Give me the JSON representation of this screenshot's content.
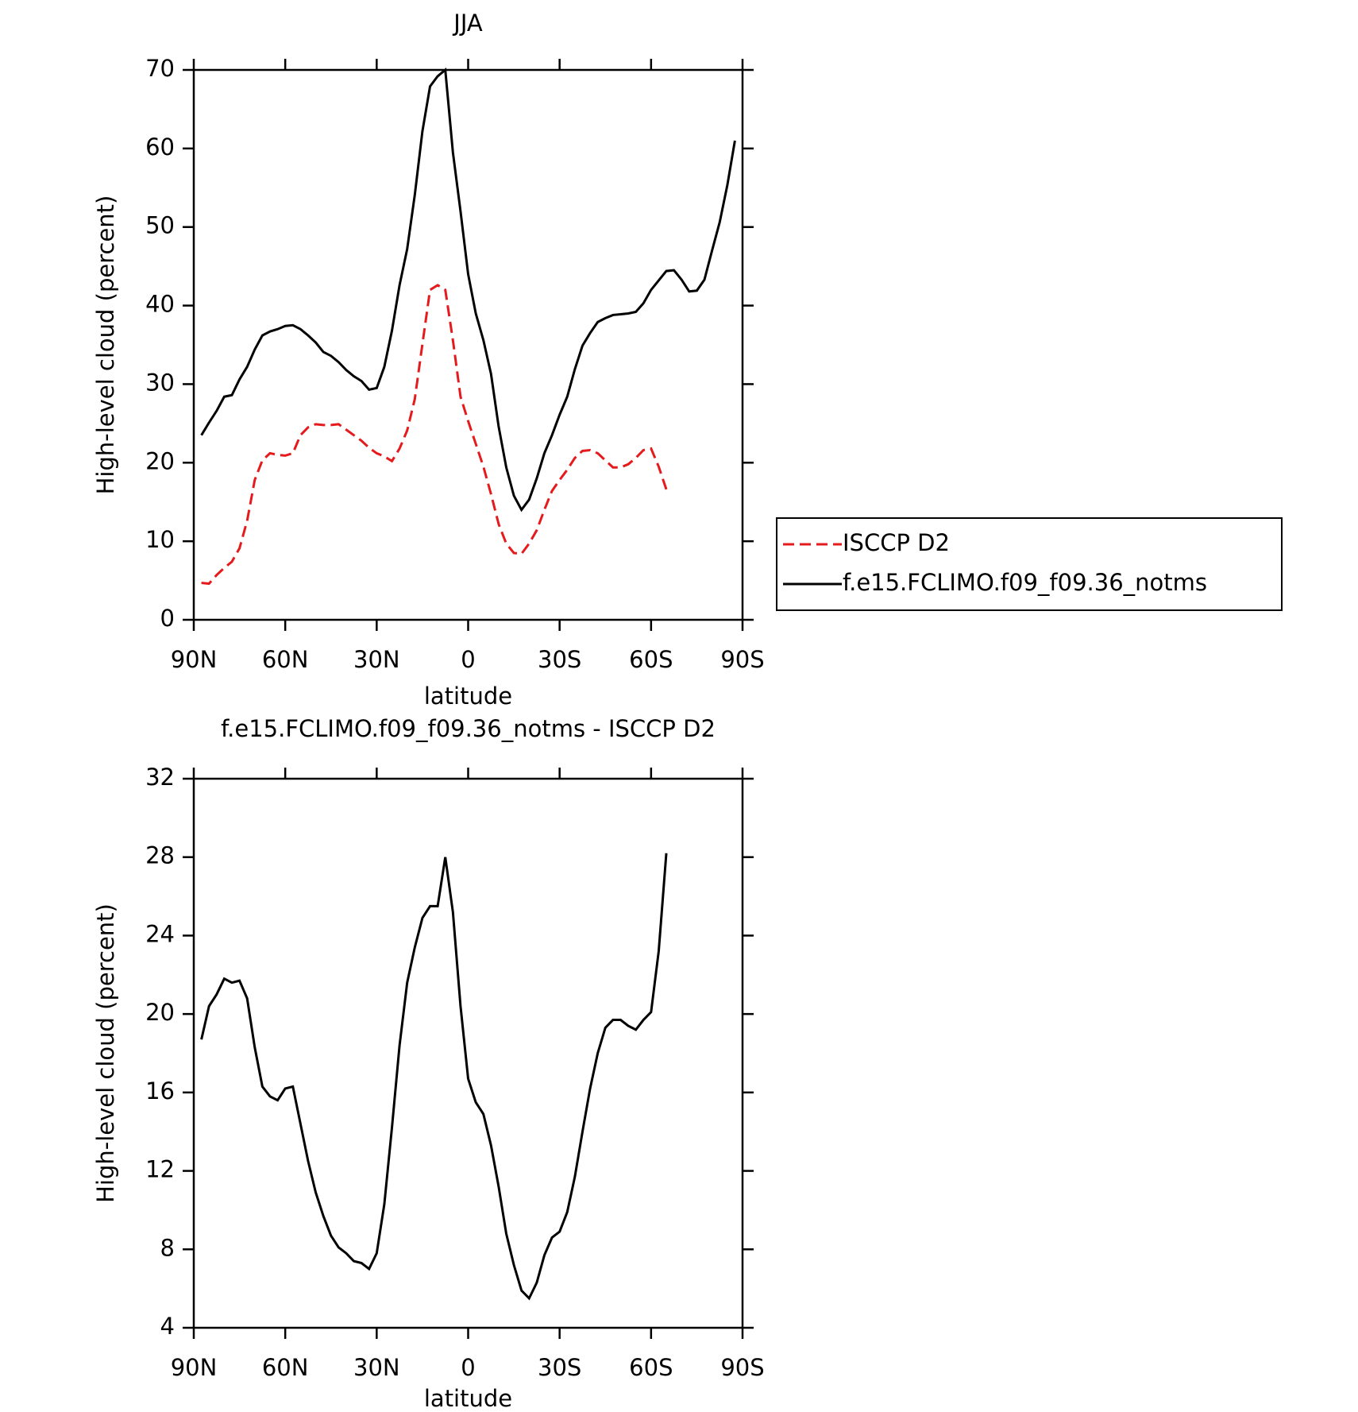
{
  "chart_data": [
    {
      "type": "line",
      "title": "JJA",
      "xlabel": "latitude",
      "ylabel": "High-level cloud (percent)",
      "x": [
        87.5,
        85,
        82.5,
        80,
        77.5,
        75,
        72.5,
        70,
        67.5,
        65,
        62.5,
        60,
        57.5,
        55,
        52.5,
        50,
        47.5,
        45,
        42.5,
        40,
        37.5,
        35,
        32.5,
        30,
        27.5,
        25,
        22.5,
        20,
        17.5,
        15,
        12.5,
        10,
        7.5,
        5,
        2.5,
        0,
        -2.5,
        -5,
        -7.5,
        -10,
        -12.5,
        -15,
        -17.5,
        -20,
        -22.5,
        -25,
        -27.5,
        -30,
        -32.5,
        -35,
        -37.5,
        -40,
        -42.5,
        -45,
        -47.5,
        -50,
        -52.5,
        -55,
        -57.5,
        -60,
        -62.5,
        -65,
        -67.5,
        -70,
        -72.5,
        -75,
        -77.5,
        -80,
        -82.5,
        -85,
        -87.5
      ],
      "series": [
        {
          "name": "ISCCP D2",
          "color": "#e41a1c",
          "linestyle": "dashed",
          "values": [
            4.7,
            4.6,
            5.7,
            6.6,
            7.4,
            9.1,
            12.6,
            17.8,
            20.3,
            21.2,
            21.0,
            20.9,
            21.2,
            23.5,
            24.5,
            24.9,
            24.8,
            24.8,
            24.9,
            24.2,
            23.5,
            22.8,
            21.9,
            21.2,
            20.8,
            20.2,
            21.8,
            24.1,
            28.1,
            35.1,
            42.0,
            42.6,
            42.0,
            35.6,
            28.4,
            25.3,
            22.4,
            19.5,
            16.0,
            12.2,
            9.7,
            8.5,
            8.4,
            9.7,
            11.4,
            14.0,
            16.4,
            17.8,
            19.1,
            20.6,
            21.5,
            21.6,
            21.2,
            20.3,
            19.4,
            19.4,
            19.8,
            20.6,
            21.6,
            21.8,
            19.5,
            16.6,
            null,
            null,
            null,
            null,
            null,
            null,
            null,
            null,
            null
          ]
        },
        {
          "name": "f.e15.FCLIMO.f09_f09.36_notms",
          "color": "#000000",
          "linestyle": "solid",
          "values": [
            23.5,
            25.1,
            26.6,
            28.4,
            28.6,
            30.6,
            32.2,
            34.4,
            36.2,
            36.7,
            37.0,
            37.4,
            37.5,
            37.0,
            36.2,
            35.3,
            34.1,
            33.6,
            32.8,
            31.8,
            31.0,
            30.4,
            29.3,
            29.5,
            32.2,
            36.8,
            42.6,
            47.2,
            54.1,
            62.2,
            67.9,
            69.2,
            70.0,
            59.5,
            52.0,
            44.0,
            39.0,
            35.6,
            31.3,
            24.6,
            19.4,
            15.8,
            14.0,
            15.3,
            18.0,
            21.2,
            23.5,
            26.1,
            28.4,
            31.9,
            34.9,
            36.5,
            37.9,
            38.4,
            38.8,
            38.9,
            39.0,
            39.2,
            40.3,
            42.0,
            43.2,
            44.4,
            44.5,
            43.3,
            41.8,
            41.9,
            43.3,
            47.0,
            50.6,
            55.3,
            61.0
          ]
        }
      ],
      "xlim": [
        90,
        -90
      ],
      "xticks": [
        {
          "value": 90,
          "label": "90N"
        },
        {
          "value": 60,
          "label": "60N"
        },
        {
          "value": 30,
          "label": "30N"
        },
        0,
        {
          "value": -30,
          "label": "30S"
        },
        {
          "value": -60,
          "label": "60S"
        },
        {
          "value": -90,
          "label": "90S"
        }
      ],
      "ylim": [
        0,
        70
      ],
      "yticks": [
        0,
        10,
        20,
        30,
        40,
        50,
        60,
        70
      ],
      "legend": "right"
    },
    {
      "type": "line",
      "title": "f.e15.FCLIMO.f09_f09.36_notms - ISCCP D2",
      "xlabel": "latitude",
      "ylabel": "High-level cloud (percent)",
      "x": [
        87.5,
        85,
        82.5,
        80,
        77.5,
        75,
        72.5,
        70,
        67.5,
        65,
        62.5,
        60,
        57.5,
        55,
        52.5,
        50,
        47.5,
        45,
        42.5,
        40,
        37.5,
        35,
        32.5,
        30,
        27.5,
        25,
        22.5,
        20,
        17.5,
        15,
        12.5,
        10,
        7.5,
        5,
        2.5,
        0,
        -2.5,
        -5,
        -7.5,
        -10,
        -12.5,
        -15,
        -17.5,
        -20,
        -22.5,
        -25,
        -27.5,
        -30,
        -32.5,
        -35,
        -37.5,
        -40,
        -42.5,
        -45,
        -47.5,
        -50,
        -52.5,
        -55,
        -57.5,
        -60,
        -62.5,
        -65,
        -67.5,
        -70,
        -72.5,
        -75,
        -77.5,
        -80,
        -82.5,
        -85,
        -87.5
      ],
      "series": [
        {
          "color": "#000000",
          "linestyle": "solid",
          "values": [
            18.7,
            20.4,
            21.0,
            21.8,
            21.6,
            21.7,
            20.8,
            18.3,
            16.3,
            15.8,
            15.6,
            16.2,
            16.3,
            14.4,
            12.5,
            10.9,
            9.7,
            8.7,
            8.1,
            7.8,
            7.4,
            7.3,
            7.0,
            7.8,
            10.3,
            14.2,
            18.4,
            21.6,
            23.4,
            24.9,
            25.5,
            25.5,
            28.0,
            25.2,
            20.4,
            16.7,
            15.5,
            14.9,
            13.3,
            11.2,
            8.8,
            7.2,
            5.9,
            5.5,
            6.3,
            7.7,
            8.6,
            8.9,
            9.9,
            11.7,
            14.0,
            16.2,
            18.0,
            19.3,
            19.7,
            19.7,
            19.4,
            19.2,
            19.7,
            20.1,
            23.2,
            28.2,
            null,
            null,
            null,
            null,
            null,
            null,
            null,
            null,
            null
          ]
        }
      ],
      "xlim": [
        90,
        -90
      ],
      "xticks": [
        {
          "value": 90,
          "label": "90N"
        },
        {
          "value": 60,
          "label": "60N"
        },
        {
          "value": 30,
          "label": "30N"
        },
        0,
        {
          "value": -30,
          "label": "30S"
        },
        {
          "value": -60,
          "label": "60S"
        },
        {
          "value": -90,
          "label": "90S"
        }
      ],
      "ylim": [
        4,
        32
      ],
      "yticks": [
        4,
        8,
        12,
        16,
        20,
        24,
        28,
        32
      ]
    }
  ]
}
